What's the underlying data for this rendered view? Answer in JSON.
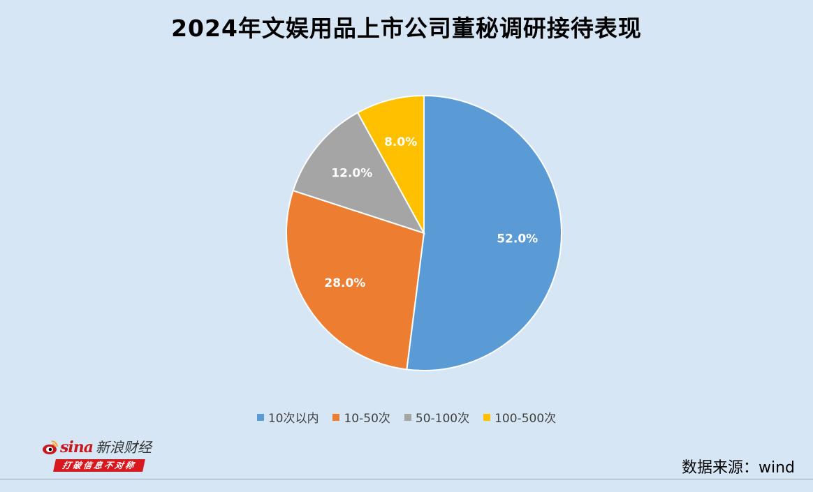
{
  "title": "2024年文娱用品上市公司董秘调研接待表现",
  "source": "数据来源：wind",
  "logo": {
    "brand": "sina",
    "name": "新浪财经",
    "slogan": "打破信息不对称",
    "icon": "sina-eye-logo-icon"
  },
  "colors": {
    "background": "#d6e6f4",
    "slice_border": "#ffffff"
  },
  "chart_data": {
    "type": "pie",
    "title": "2024年文娱用品上市公司董秘调研接待表现",
    "legend_position": "bottom",
    "start_angle_deg": 0,
    "direction": "clockwise",
    "slices": [
      {
        "label": "10次以内",
        "value": 52.0,
        "display": "52.0%",
        "color": "#5b9bd5"
      },
      {
        "label": "10-50次",
        "value": 28.0,
        "display": "28.0%",
        "color": "#ed7d31"
      },
      {
        "label": "50-100次",
        "value": 12.0,
        "display": "12.0%",
        "color": "#a5a5a5"
      },
      {
        "label": "100-500次",
        "value": 8.0,
        "display": "8.0%",
        "color": "#ffc000"
      }
    ]
  }
}
